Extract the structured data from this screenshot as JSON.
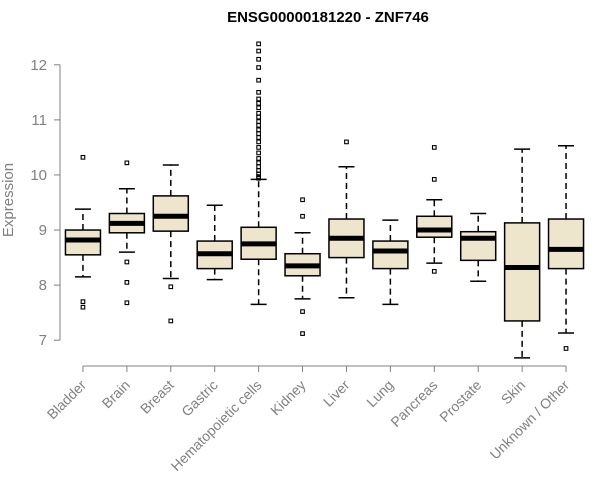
{
  "chart_data": {
    "type": "boxplot",
    "title": "ENSG00000181220 - ZNF746",
    "xlabel": "",
    "ylabel": "Expression",
    "ylim": [
      6.55,
      12.45
    ],
    "yticks": [
      7,
      8,
      9,
      10,
      11,
      12
    ],
    "grid": false,
    "legend": "none",
    "colors": {
      "box_fill": "#ede5cc",
      "stroke": "#000000",
      "axis": "#808080"
    },
    "categories": [
      "Bladder",
      "Brain",
      "Breast",
      "Gastric",
      "Hematopoietic cells",
      "Kidney",
      "Liver",
      "Lung",
      "Pancreas",
      "Prostate",
      "Skin",
      "Unknown / Other"
    ],
    "boxes": [
      {
        "name": "Bladder",
        "whisker_low": 8.15,
        "q1": 8.55,
        "median": 8.82,
        "q3": 9.0,
        "whisker_high": 9.38,
        "outliers": [
          10.32,
          7.7,
          7.6
        ]
      },
      {
        "name": "Brain",
        "whisker_low": 8.6,
        "q1": 8.95,
        "median": 9.12,
        "q3": 9.3,
        "whisker_high": 9.75,
        "outliers": [
          10.22,
          8.42,
          8.05,
          7.68
        ]
      },
      {
        "name": "Breast",
        "whisker_low": 8.12,
        "q1": 8.98,
        "median": 9.25,
        "q3": 9.62,
        "whisker_high": 10.18,
        "outliers": [
          7.97,
          7.35
        ]
      },
      {
        "name": "Gastric",
        "whisker_low": 8.1,
        "q1": 8.3,
        "median": 8.57,
        "q3": 8.8,
        "whisker_high": 9.45,
        "outliers": []
      },
      {
        "name": "Hematopoietic cells",
        "whisker_low": 7.65,
        "q1": 8.47,
        "median": 8.75,
        "q3": 9.05,
        "whisker_high": 9.92,
        "outliers": [
          12.38,
          12.25,
          12.1,
          11.95,
          11.72,
          11.5,
          11.38,
          11.3,
          11.22,
          11.12,
          11.05,
          10.97,
          10.9,
          10.82,
          10.75,
          10.68,
          10.6,
          10.5,
          10.4,
          10.3,
          10.22,
          10.15,
          10.08,
          10.02,
          9.97,
          9.94
        ]
      },
      {
        "name": "Kidney",
        "whisker_low": 7.75,
        "q1": 8.17,
        "median": 8.35,
        "q3": 8.57,
        "whisker_high": 8.95,
        "outliers": [
          9.55,
          9.25,
          7.52,
          7.12
        ]
      },
      {
        "name": "Liver",
        "whisker_low": 7.77,
        "q1": 8.5,
        "median": 8.85,
        "q3": 9.2,
        "whisker_high": 10.15,
        "outliers": [
          10.6
        ]
      },
      {
        "name": "Lung",
        "whisker_low": 7.65,
        "q1": 8.3,
        "median": 8.62,
        "q3": 8.8,
        "whisker_high": 9.18,
        "outliers": []
      },
      {
        "name": "Pancreas",
        "whisker_low": 8.4,
        "q1": 8.87,
        "median": 9.0,
        "q3": 9.25,
        "whisker_high": 9.55,
        "outliers": [
          10.5,
          9.92,
          8.25
        ]
      },
      {
        "name": "Prostate",
        "whisker_low": 8.07,
        "q1": 8.45,
        "median": 8.85,
        "q3": 8.97,
        "whisker_high": 9.3,
        "outliers": []
      },
      {
        "name": "Skin",
        "whisker_low": 6.68,
        "q1": 7.35,
        "median": 8.32,
        "q3": 9.13,
        "whisker_high": 10.47,
        "outliers": []
      },
      {
        "name": "Unknown / Other",
        "whisker_low": 7.13,
        "q1": 8.3,
        "median": 8.65,
        "q3": 9.2,
        "whisker_high": 10.53,
        "outliers": [
          6.85
        ]
      }
    ]
  }
}
